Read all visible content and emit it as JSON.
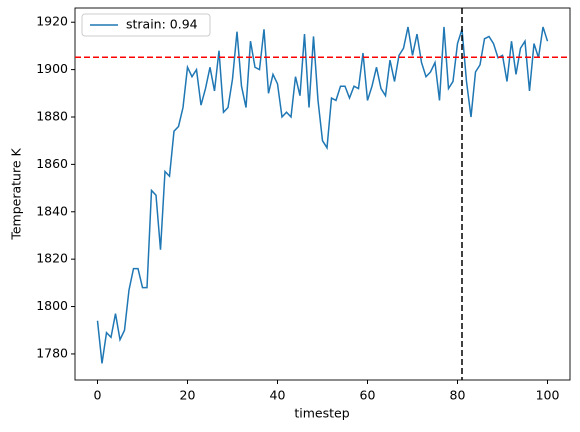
{
  "chart_data": {
    "type": "line",
    "xlabel": "timestep",
    "ylabel": "Temperature K",
    "x": [
      0,
      1,
      2,
      3,
      4,
      5,
      6,
      7,
      8,
      9,
      10,
      11,
      12,
      13,
      14,
      15,
      16,
      17,
      18,
      19,
      20,
      21,
      22,
      23,
      24,
      25,
      26,
      27,
      28,
      29,
      30,
      31,
      32,
      33,
      34,
      35,
      36,
      37,
      38,
      39,
      40,
      41,
      42,
      43,
      44,
      45,
      46,
      47,
      48,
      49,
      50,
      51,
      52,
      53,
      54,
      55,
      56,
      57,
      58,
      59,
      60,
      61,
      62,
      63,
      64,
      65,
      66,
      67,
      68,
      69,
      70,
      71,
      72,
      73,
      74,
      75,
      76,
      77,
      78,
      79,
      80,
      81,
      82,
      83,
      84,
      85,
      86,
      87,
      88,
      89,
      90,
      91,
      92,
      93,
      94,
      95,
      96,
      97,
      98,
      99,
      100
    ],
    "series": [
      {
        "name": "strain: 0.94",
        "color": "#1f77b4",
        "values": [
          1794,
          1776,
          1789,
          1787,
          1797,
          1786,
          1790,
          1807,
          1816,
          1816,
          1808,
          1808,
          1849,
          1847,
          1824,
          1857,
          1855,
          1874,
          1876,
          1884,
          1901,
          1897,
          1900,
          1885,
          1892,
          1901,
          1891,
          1908,
          1882,
          1884,
          1896,
          1916,
          1893,
          1884,
          1912,
          1901,
          1900,
          1917,
          1890,
          1898,
          1894,
          1880,
          1882,
          1880,
          1897,
          1889,
          1915,
          1884,
          1914,
          1887,
          1870,
          1867,
          1888,
          1887,
          1893,
          1893,
          1888,
          1893,
          1892,
          1907,
          1887,
          1893,
          1901,
          1892,
          1889,
          1904,
          1895,
          1906,
          1909,
          1918,
          1906,
          1915,
          1903,
          1897,
          1899,
          1903,
          1887,
          1918,
          1892,
          1895,
          1911,
          1917,
          1895,
          1880,
          1899,
          1902,
          1913,
          1914,
          1911,
          1905,
          1906,
          1895,
          1912,
          1898,
          1909,
          1912,
          1891,
          1911,
          1905,
          1918,
          1912
        ]
      }
    ],
    "hlines": [
      {
        "value": 1905.2,
        "color": "#ff0000"
      }
    ],
    "vlines": [
      {
        "value": 81,
        "color": "#000000"
      }
    ],
    "xlim": [
      -5,
      105
    ],
    "ylim": [
      1769,
      1926
    ],
    "xticks": [
      0,
      20,
      40,
      60,
      80,
      100
    ],
    "yticks": [
      1780,
      1800,
      1820,
      1840,
      1860,
      1880,
      1900,
      1920
    ],
    "legend": "upper left",
    "grid": false
  }
}
